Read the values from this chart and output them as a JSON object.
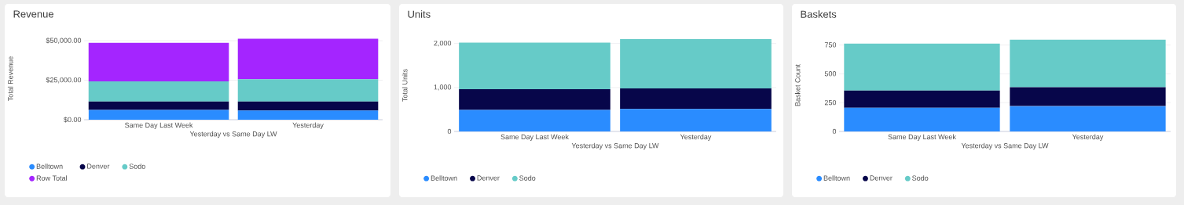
{
  "chart_data": [
    {
      "type": "bar",
      "stacked": true,
      "title": "Revenue",
      "xlabel": "Yesterday vs Same Day LW",
      "ylabel": "Total Revenue",
      "categories": [
        "Same Day Last Week",
        "Yesterday"
      ],
      "series": [
        {
          "name": "Belltown",
          "color": "#2a8cff",
          "values": [
            6200,
            5800
          ]
        },
        {
          "name": "Denver",
          "color": "#07064a",
          "values": [
            5300,
            5700
          ]
        },
        {
          "name": "Sodo",
          "color": "#66cbc8",
          "values": [
            12800,
            14100
          ]
        },
        {
          "name": "Row Total",
          "color": "#a425ff",
          "values": [
            24300,
            25600
          ]
        }
      ],
      "ylim": [
        0,
        52000
      ],
      "yticks": [
        {
          "value": 0,
          "label": "$0.00"
        },
        {
          "value": 25000,
          "label": "$25,000.00"
        },
        {
          "value": 50000,
          "label": "$50,000.00"
        }
      ],
      "grid": "y",
      "legend": "bottom"
    },
    {
      "type": "bar",
      "stacked": true,
      "title": "Units",
      "xlabel": "Yesterday vs Same Day LW",
      "ylabel": "Total Units",
      "categories": [
        "Same Day Last Week",
        "Yesterday"
      ],
      "series": [
        {
          "name": "Belltown",
          "color": "#2a8cff",
          "values": [
            490,
            510
          ]
        },
        {
          "name": "Denver",
          "color": "#07064a",
          "values": [
            470,
            470
          ]
        },
        {
          "name": "Sodo",
          "color": "#66cbc8",
          "values": [
            1060,
            1120
          ]
        }
      ],
      "ylim": [
        0,
        2100
      ],
      "yticks": [
        0,
        {
          "value": 1000,
          "label": "1,000"
        },
        {
          "value": 2000,
          "label": "2,000"
        }
      ],
      "grid": "y",
      "legend": "bottom"
    },
    {
      "type": "bar",
      "stacked": true,
      "title": "Baskets",
      "xlabel": "Yesterday vs Same Day LW",
      "ylabel": "Basket Count",
      "categories": [
        "Same Day Last Week",
        "Yesterday"
      ],
      "series": [
        {
          "name": "Belltown",
          "color": "#2a8cff",
          "values": [
            205,
            220
          ]
        },
        {
          "name": "Denver",
          "color": "#07064a",
          "values": [
            149,
            163
          ]
        },
        {
          "name": "Sodo",
          "color": "#66cbc8",
          "values": [
            407,
            412
          ]
        }
      ],
      "ylim": [
        0,
        800
      ],
      "yticks": [
        0,
        250,
        500,
        750
      ],
      "grid": "y",
      "legend": "bottom"
    }
  ]
}
